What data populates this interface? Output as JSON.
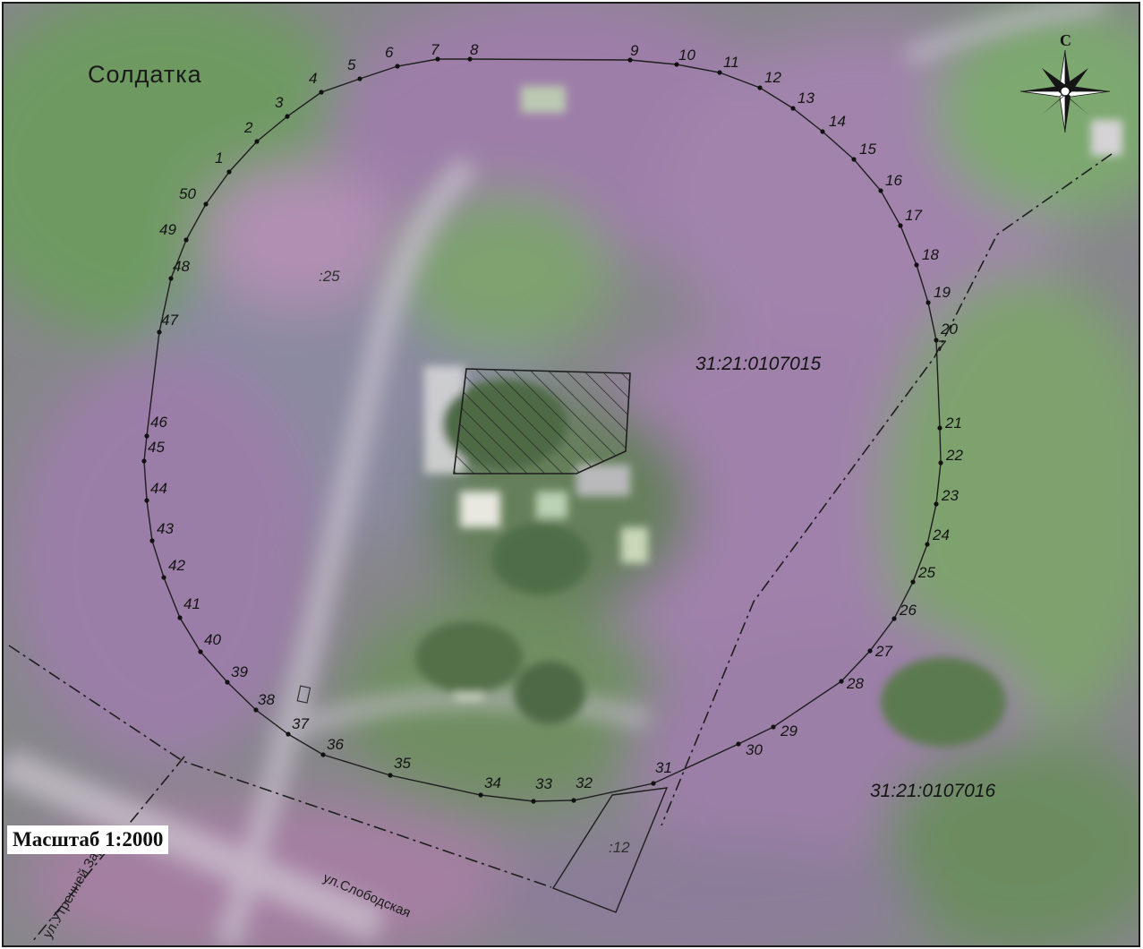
{
  "map": {
    "village_name": "Солдатка",
    "scale": "Масштаб 1:2000",
    "north_label": "С",
    "parcel_labels": {
      "parcel_25": ":25",
      "parcel_12": ":12"
    },
    "cadastral_quarters": [
      "31:21:0107015",
      "31:21:0107016"
    ],
    "streets": {
      "street_utrenney_zari": "ул.Утренней Зари",
      "street_slobodskaya": "ул.Слободская"
    },
    "boundary_marker_label": "7",
    "boundary_points": [
      "1",
      "2",
      "3",
      "4",
      "5",
      "6",
      "7",
      "8",
      "9",
      "10",
      "11",
      "12",
      "13",
      "14",
      "15",
      "16",
      "17",
      "18",
      "19",
      "20",
      "21",
      "22",
      "23",
      "24",
      "25",
      "26",
      "27",
      "28",
      "29",
      "30",
      "31",
      "32",
      "33",
      "34",
      "35",
      "36",
      "37",
      "38",
      "39",
      "40",
      "41",
      "42",
      "43",
      "44",
      "45",
      "46",
      "47",
      "48",
      "49",
      "50"
    ],
    "colors": {
      "vegetation_green": "#6f8f5e",
      "vegetation_purple": "#9a7ca6",
      "boundary_line": "#1e1e1e"
    }
  }
}
